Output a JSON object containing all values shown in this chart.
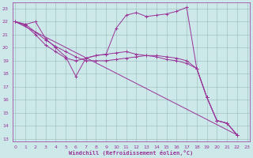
{
  "bg_color": "#cce8e8",
  "line_color": "#993399",
  "grid_color": "#99bbbb",
  "xlabel": "Windchill (Refroidissement éolien,°C)",
  "ylim": [
    12.8,
    23.5
  ],
  "xlim": [
    -0.3,
    23.3
  ],
  "yticks": [
    13,
    14,
    15,
    16,
    17,
    18,
    19,
    20,
    21,
    22,
    23
  ],
  "xticks": [
    0,
    1,
    2,
    3,
    4,
    5,
    6,
    7,
    8,
    9,
    10,
    11,
    12,
    13,
    14,
    15,
    16,
    17,
    18,
    19,
    20,
    21,
    22,
    23
  ],
  "curve1": {
    "x": [
      0,
      1,
      2,
      3,
      4,
      5,
      6,
      7,
      8,
      9,
      10,
      11,
      12,
      13,
      14,
      15,
      16,
      17,
      18,
      19,
      20,
      21,
      22
    ],
    "y": [
      22.0,
      21.8,
      22.0,
      20.7,
      20.0,
      19.3,
      17.8,
      19.2,
      19.4,
      19.5,
      21.5,
      22.5,
      22.7,
      22.4,
      22.5,
      22.6,
      22.8,
      23.1,
      18.4,
      16.2,
      14.4,
      14.2,
      13.3
    ]
  },
  "curve2": {
    "x": [
      0,
      1,
      2,
      3,
      4,
      5,
      6,
      7,
      8,
      9,
      10,
      11,
      12,
      13,
      14,
      15,
      16,
      17,
      18,
      19,
      20,
      21,
      22
    ],
    "y": [
      22.0,
      21.8,
      21.2,
      20.6,
      20.1,
      19.7,
      19.3,
      19.0,
      19.0,
      19.0,
      19.1,
      19.2,
      19.3,
      19.4,
      19.4,
      19.3,
      19.2,
      19.0,
      18.4,
      16.2,
      14.4,
      14.2,
      13.3
    ]
  },
  "curve3": {
    "x": [
      0,
      1,
      2,
      3,
      4,
      5,
      6,
      7,
      8,
      9,
      10,
      11,
      12,
      13,
      14,
      15,
      16,
      17,
      18,
      19,
      20,
      21,
      22
    ],
    "y": [
      22.0,
      21.7,
      21.0,
      20.2,
      19.7,
      19.2,
      19.0,
      19.2,
      19.4,
      19.5,
      19.6,
      19.7,
      19.5,
      19.4,
      19.3,
      19.1,
      19.0,
      18.8,
      18.4,
      16.2,
      14.4,
      14.2,
      13.3
    ]
  },
  "curve4": {
    "x": [
      0,
      22
    ],
    "y": [
      22.0,
      13.3
    ]
  }
}
